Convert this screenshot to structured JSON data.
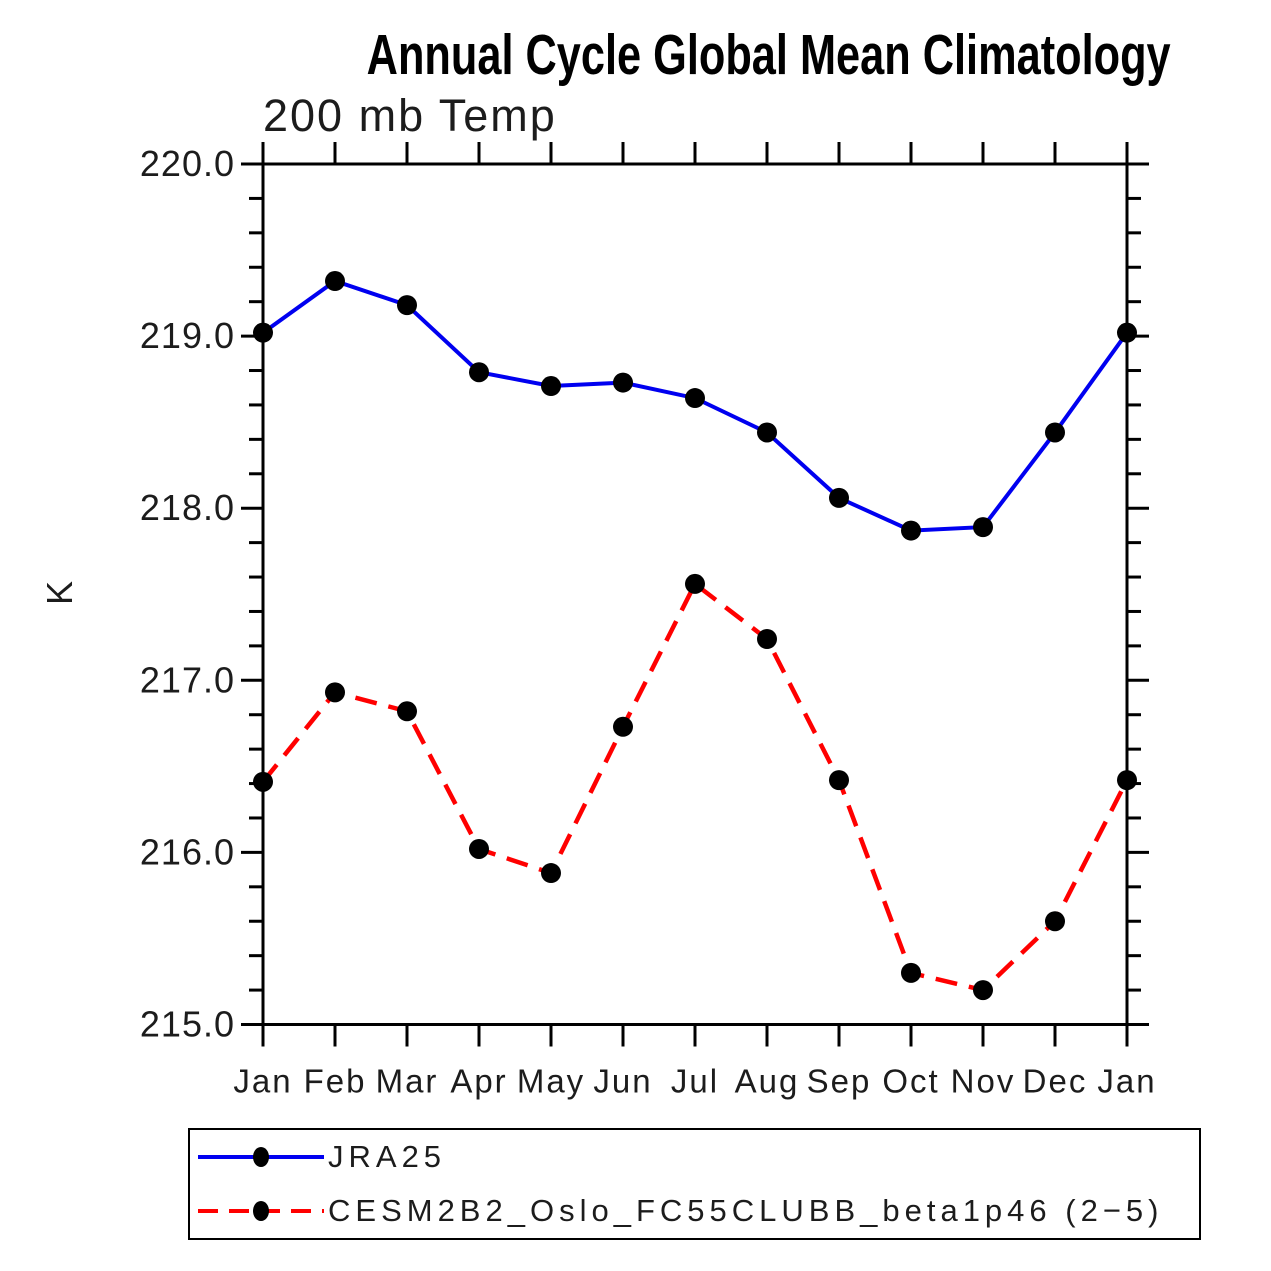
{
  "chart_data": {
    "type": "line",
    "title": "Annual Cycle Global Mean Climatology",
    "subtitle": "200 mb Temp",
    "ylabel": "K",
    "xlabel": "",
    "categories": [
      "Jan",
      "Feb",
      "Mar",
      "Apr",
      "May",
      "Jun",
      "Jul",
      "Aug",
      "Sep",
      "Oct",
      "Nov",
      "Dec",
      "Jan"
    ],
    "ylim": [
      215.0,
      220.0
    ],
    "ytick_interval": 1.0,
    "yminor_interval": 0.2,
    "ytick_labels": [
      "215.0",
      "216.0",
      "217.0",
      "218.0",
      "219.0",
      "220.0"
    ],
    "grid": false,
    "legend_position": "bottom-left",
    "axis_color": "#000000",
    "series": [
      {
        "name": "JRA25",
        "color": "#0000f0",
        "style": "solid",
        "marker": "filled-circle",
        "marker_color": "#000000",
        "values": [
          219.02,
          219.32,
          219.18,
          218.79,
          218.71,
          218.73,
          218.64,
          218.44,
          218.06,
          217.87,
          217.89,
          218.44,
          219.02
        ]
      },
      {
        "name": "CESM2B2_Oslo_FC55CLUBB_beta1p46 (2−5)",
        "color": "#ff0000",
        "style": "dashed",
        "marker": "filled-circle",
        "marker_color": "#000000",
        "values": [
          216.41,
          216.93,
          216.82,
          216.02,
          215.88,
          216.73,
          217.56,
          217.24,
          216.42,
          215.3,
          215.2,
          215.6,
          216.42
        ]
      }
    ]
  }
}
